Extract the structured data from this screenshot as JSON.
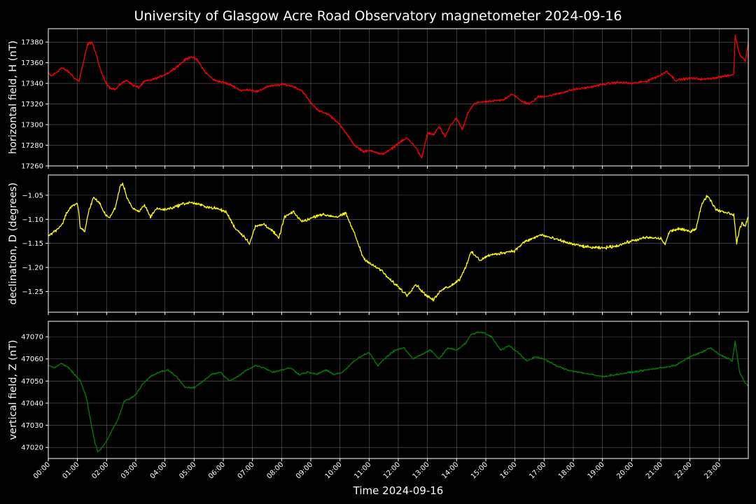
{
  "chart_data": {
    "type": "line",
    "title": "University of Glasgow Acre Road Observatory magnetometer 2024-09-16",
    "xlabel": "Time 2024-09-16",
    "x_ticks": [
      "00:00",
      "01:00",
      "02:00",
      "03:00",
      "04:00",
      "05:00",
      "06:00",
      "07:00",
      "08:00",
      "09:00",
      "10:00",
      "11:00",
      "12:00",
      "13:00",
      "14:00",
      "15:00",
      "16:00",
      "17:00",
      "18:00",
      "19:00",
      "20:00",
      "21:00",
      "22:00",
      "23:00"
    ],
    "xlim_hours": [
      0,
      24
    ],
    "grid": true,
    "panels": [
      {
        "ylabel": "horizontal field, H (nT)",
        "color": "#ff0000",
        "ylim": [
          17260,
          17393
        ],
        "yticks": [
          17260,
          17280,
          17300,
          17320,
          17340,
          17360,
          17380
        ],
        "y_decimals": 0,
        "noise": 1.6,
        "x": [
          0.0,
          0.1,
          0.25,
          0.45,
          0.6,
          0.75,
          0.9,
          1.05,
          1.2,
          1.35,
          1.5,
          1.65,
          1.8,
          1.95,
          2.1,
          2.3,
          2.5,
          2.7,
          2.9,
          3.1,
          3.3,
          3.5,
          3.8,
          4.1,
          4.4,
          4.7,
          4.9,
          5.1,
          5.4,
          5.7,
          6.0,
          6.3,
          6.6,
          6.9,
          7.2,
          7.5,
          7.8,
          8.1,
          8.4,
          8.7,
          9.0,
          9.3,
          9.6,
          9.9,
          10.2,
          10.5,
          10.8,
          11.1,
          11.4,
          11.7,
          12.0,
          12.3,
          12.6,
          12.8,
          13.0,
          13.2,
          13.4,
          13.6,
          13.8,
          14.0,
          14.2,
          14.4,
          14.6,
          14.8,
          15.0,
          15.3,
          15.6,
          15.9,
          16.2,
          16.5,
          16.8,
          17.2,
          17.6,
          18.0,
          18.5,
          19.0,
          19.5,
          20.0,
          20.5,
          21.0,
          21.2,
          21.5,
          22.0,
          22.5,
          23.0,
          23.4,
          23.5,
          23.55,
          23.7,
          23.9,
          24.0
        ],
        "y": [
          17350,
          17347,
          17350,
          17355,
          17353,
          17350,
          17345,
          17342,
          17360,
          17378,
          17380,
          17367,
          17352,
          17342,
          17336,
          17334,
          17340,
          17343,
          17338,
          17336,
          17342,
          17343,
          17346,
          17350,
          17356,
          17363,
          17366,
          17363,
          17350,
          17343,
          17341,
          17338,
          17333,
          17334,
          17332,
          17337,
          17338,
          17339,
          17337,
          17333,
          17321,
          17313,
          17310,
          17303,
          17292,
          17280,
          17274,
          17275,
          17271,
          17275,
          17282,
          17287,
          17278,
          17267,
          17292,
          17290,
          17298,
          17288,
          17300,
          17306,
          17295,
          17312,
          17320,
          17322,
          17322,
          17323,
          17324,
          17330,
          17323,
          17320,
          17327,
          17328,
          17331,
          17334,
          17336,
          17339,
          17341,
          17340,
          17342,
          17348,
          17352,
          17343,
          17345,
          17344,
          17346,
          17348,
          17349,
          17386,
          17368,
          17362,
          17380
        ]
      },
      {
        "ylabel": "declination, D (degrees)",
        "color": "#ffff00",
        "ylim": [
          -1.293,
          -1.008
        ],
        "yticks": [
          -1.25,
          -1.2,
          -1.15,
          -1.1,
          -1.05
        ],
        "y_decimals": 2,
        "noise": 0.0045,
        "x": [
          0.0,
          0.15,
          0.35,
          0.5,
          0.6,
          0.8,
          1.0,
          1.05,
          1.1,
          1.25,
          1.4,
          1.55,
          1.75,
          1.9,
          2.1,
          2.3,
          2.45,
          2.55,
          2.7,
          2.9,
          3.1,
          3.3,
          3.5,
          3.7,
          4.0,
          4.3,
          4.6,
          4.9,
          5.2,
          5.5,
          5.8,
          6.1,
          6.4,
          6.7,
          6.9,
          7.1,
          7.4,
          7.7,
          7.9,
          8.1,
          8.4,
          8.7,
          9.0,
          9.3,
          9.6,
          9.9,
          10.2,
          10.5,
          10.8,
          11.1,
          11.4,
          11.7,
          12.0,
          12.3,
          12.6,
          12.9,
          13.2,
          13.5,
          13.8,
          14.1,
          14.3,
          14.5,
          14.8,
          15.1,
          15.4,
          15.7,
          16.0,
          16.3,
          16.6,
          16.9,
          17.2,
          17.6,
          18.0,
          18.5,
          19.0,
          19.5,
          20.0,
          20.5,
          21.0,
          21.15,
          21.3,
          21.6,
          22.0,
          22.2,
          22.4,
          22.6,
          22.9,
          23.2,
          23.5,
          23.6,
          23.7,
          23.8,
          23.9,
          24.0
        ],
        "y": [
          -1.135,
          -1.128,
          -1.118,
          -1.108,
          -1.09,
          -1.072,
          -1.068,
          -1.09,
          -1.118,
          -1.125,
          -1.08,
          -1.055,
          -1.065,
          -1.085,
          -1.098,
          -1.075,
          -1.035,
          -1.025,
          -1.055,
          -1.078,
          -1.085,
          -1.07,
          -1.095,
          -1.078,
          -1.08,
          -1.075,
          -1.068,
          -1.065,
          -1.07,
          -1.075,
          -1.078,
          -1.085,
          -1.118,
          -1.135,
          -1.15,
          -1.115,
          -1.11,
          -1.125,
          -1.14,
          -1.095,
          -1.085,
          -1.105,
          -1.098,
          -1.09,
          -1.092,
          -1.095,
          -1.088,
          -1.13,
          -1.18,
          -1.195,
          -1.205,
          -1.225,
          -1.24,
          -1.258,
          -1.235,
          -1.255,
          -1.268,
          -1.245,
          -1.238,
          -1.225,
          -1.2,
          -1.168,
          -1.185,
          -1.175,
          -1.172,
          -1.168,
          -1.165,
          -1.148,
          -1.14,
          -1.132,
          -1.138,
          -1.145,
          -1.152,
          -1.158,
          -1.16,
          -1.155,
          -1.145,
          -1.138,
          -1.14,
          -1.152,
          -1.125,
          -1.12,
          -1.125,
          -1.12,
          -1.07,
          -1.05,
          -1.08,
          -1.085,
          -1.09,
          -1.15,
          -1.12,
          -1.108,
          -1.115,
          -1.092
        ]
      },
      {
        "ylabel": "vertical field, Z (nT)",
        "color": "#008000",
        "ylim": [
          47015,
          47077
        ],
        "yticks": [
          47020,
          47030,
          47040,
          47050,
          47060,
          47070
        ],
        "y_decimals": 0,
        "noise": 0.55,
        "x": [
          0.0,
          0.2,
          0.45,
          0.7,
          0.9,
          1.1,
          1.3,
          1.45,
          1.6,
          1.7,
          1.85,
          2.0,
          2.2,
          2.4,
          2.6,
          2.8,
          3.0,
          3.2,
          3.5,
          3.8,
          4.1,
          4.4,
          4.7,
          5.0,
          5.3,
          5.6,
          5.9,
          6.2,
          6.5,
          6.8,
          7.1,
          7.4,
          7.7,
          8.0,
          8.3,
          8.6,
          8.9,
          9.2,
          9.5,
          9.8,
          10.1,
          10.4,
          10.7,
          11.0,
          11.3,
          11.6,
          11.9,
          12.2,
          12.5,
          12.8,
          13.1,
          13.4,
          13.7,
          14.0,
          14.3,
          14.5,
          14.7,
          14.9,
          15.2,
          15.5,
          15.8,
          16.1,
          16.4,
          16.7,
          17.0,
          17.4,
          17.8,
          18.2,
          18.6,
          19.0,
          19.5,
          20.0,
          20.5,
          21.0,
          21.5,
          22.0,
          22.4,
          22.7,
          23.0,
          23.35,
          23.45,
          23.55,
          23.7,
          23.9,
          24.0
        ],
        "y": [
          47057,
          47056,
          47058,
          47056,
          47053,
          47050,
          47043,
          47032,
          47022,
          47018,
          47020,
          47023,
          47028,
          47033,
          47041,
          47042,
          47044,
          47048,
          47052,
          47054,
          47055,
          47052,
          47047,
          47047,
          47050,
          47053,
          47054,
          47050,
          47052,
          47055,
          47057,
          47056,
          47054,
          47055,
          47056,
          47053,
          47054,
          47053,
          47055,
          47053,
          47054,
          47058,
          47061,
          47063,
          47057,
          47061,
          47064,
          47065,
          47060,
          47062,
          47064,
          47060,
          47065,
          47064,
          47067,
          47071,
          47072,
          47072,
          47070,
          47064,
          47066,
          47063,
          47059,
          47061,
          47060,
          47057,
          47055,
          47054,
          47053,
          47052,
          47053,
          47054,
          47055,
          47056,
          47057,
          47061,
          47063,
          47065,
          47062,
          47060,
          47059,
          47068,
          47054,
          47049,
          47048
        ]
      }
    ]
  }
}
